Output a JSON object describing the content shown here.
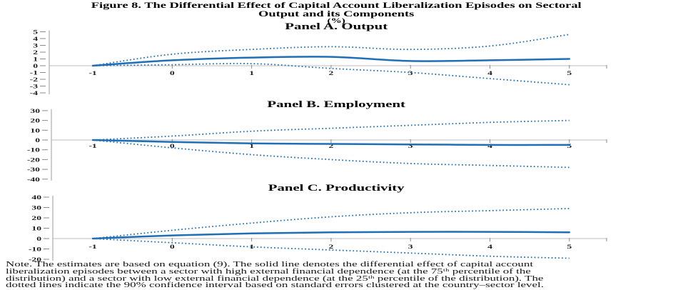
{
  "header": {
    "title_line1": "Figure 8. The Differential Effect of Capital Account Liberalization Episodes on Sectoral",
    "title_line2": "Output and its Components",
    "unit_label": "(%)"
  },
  "colors": {
    "line_blue": "#1f6fb8",
    "axis_gray": "#9b9b9b",
    "grid_gray": "#bdbdbd"
  },
  "chart_data": [
    {
      "type": "line",
      "title": "Panel A. Output",
      "xlabel": "",
      "ylabel": "",
      "x": [
        -1,
        0,
        1,
        2,
        3,
        4,
        5
      ],
      "yticks": [
        5,
        4,
        3,
        2,
        1,
        0,
        -1,
        -2,
        -3,
        -4
      ],
      "ylim": [
        -4,
        5
      ],
      "grid": false,
      "legend": "none",
      "series": [
        {
          "name": "differential effect (solid line)",
          "style": "solid",
          "values": [
            0,
            0.8,
            1.2,
            1.3,
            0.7,
            0.8,
            1.0
          ]
        },
        {
          "name": "90% confidence band upper (dotted)",
          "style": "dotted",
          "values": [
            0,
            1.7,
            2.4,
            2.8,
            2.4,
            2.9,
            4.6
          ]
        },
        {
          "name": "90% confidence band lower (dotted)",
          "style": "dotted",
          "values": [
            0,
            0.15,
            0.3,
            -0.4,
            -1.0,
            -1.9,
            -2.8
          ]
        }
      ]
    },
    {
      "type": "line",
      "title": "Panel B. Employment",
      "xlabel": "",
      "ylabel": "",
      "x": [
        -1,
        0,
        1,
        2,
        3,
        4,
        5
      ],
      "yticks": [
        30,
        20,
        10,
        0,
        -10,
        -20,
        -30,
        -40
      ],
      "ylim": [
        -40,
        30
      ],
      "grid": false,
      "legend": "none",
      "series": [
        {
          "name": "differential effect (solid line)",
          "style": "solid",
          "values": [
            0,
            -2,
            -3.5,
            -4,
            -4.5,
            -5,
            -5
          ]
        },
        {
          "name": "90% confidence band upper (dotted)",
          "style": "dotted",
          "values": [
            0,
            4,
            9,
            12,
            15,
            18,
            20
          ]
        },
        {
          "name": "90% confidence band lower (dotted)",
          "style": "dotted",
          "values": [
            0,
            -8,
            -15,
            -20,
            -24,
            -26,
            -28
          ]
        }
      ]
    },
    {
      "type": "line",
      "title": "Panel C. Productivity",
      "xlabel": "",
      "ylabel": "",
      "x": [
        -1,
        0,
        1,
        2,
        3,
        4,
        5
      ],
      "yticks": [
        40,
        30,
        20,
        10,
        0,
        -10,
        -20
      ],
      "ylim": [
        -20,
        40
      ],
      "grid": false,
      "legend": "none",
      "series": [
        {
          "name": "differential effect (solid line)",
          "style": "solid",
          "values": [
            0,
            3,
            5,
            6,
            6.5,
            6.5,
            6
          ]
        },
        {
          "name": "90% confidence band upper (dotted)",
          "style": "dotted",
          "values": [
            0,
            8,
            15,
            21,
            25,
            27,
            29
          ]
        },
        {
          "name": "90% confidence band lower (dotted)",
          "style": "dotted",
          "values": [
            0,
            -4,
            -8,
            -11,
            -14,
            -17,
            -19
          ]
        }
      ]
    }
  ],
  "note": {
    "line1": "Note. The estimates are based on equation (9). The solid line denotes the differential effect of capital account",
    "line2": "liberalization episodes between a sector with high external financial dependence (at the 75ᵗʰ percentile of the",
    "line3": "distribution) and a sector with low external financial dependence (at the 25ᵗʰ percentile of the distribution). The",
    "line4": "dotted lines indicate the 90% confidence interval based on standard errors clustered at the country–sector level."
  }
}
